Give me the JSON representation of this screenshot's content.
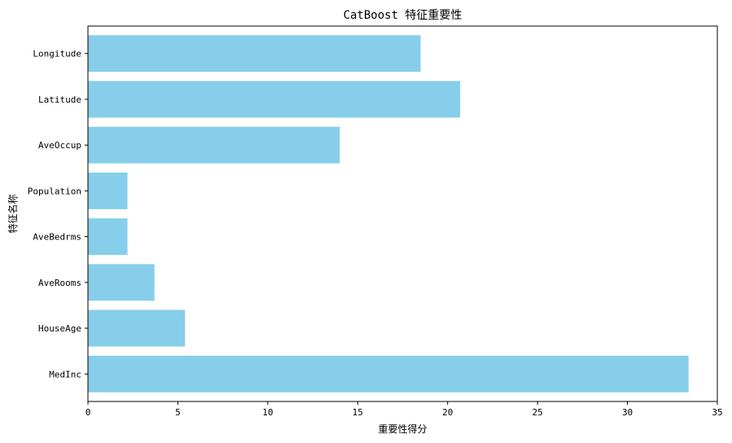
{
  "chart_data": {
    "type": "bar",
    "orientation": "horizontal",
    "title": "CatBoost 特征重要性",
    "xlabel": "重要性得分",
    "ylabel": "特征名称",
    "categories": [
      "MedInc",
      "HouseAge",
      "AveRooms",
      "AveBedrms",
      "Population",
      "AveOccup",
      "Latitude",
      "Longitude"
    ],
    "values": [
      33.4,
      5.4,
      3.7,
      2.2,
      2.2,
      14.0,
      20.7,
      18.5
    ],
    "xlim": [
      0,
      35
    ],
    "xticks": [
      0,
      5,
      10,
      15,
      20,
      25,
      30,
      35
    ],
    "bar_color": "#87ceeb",
    "grid": false,
    "legend": "none"
  }
}
